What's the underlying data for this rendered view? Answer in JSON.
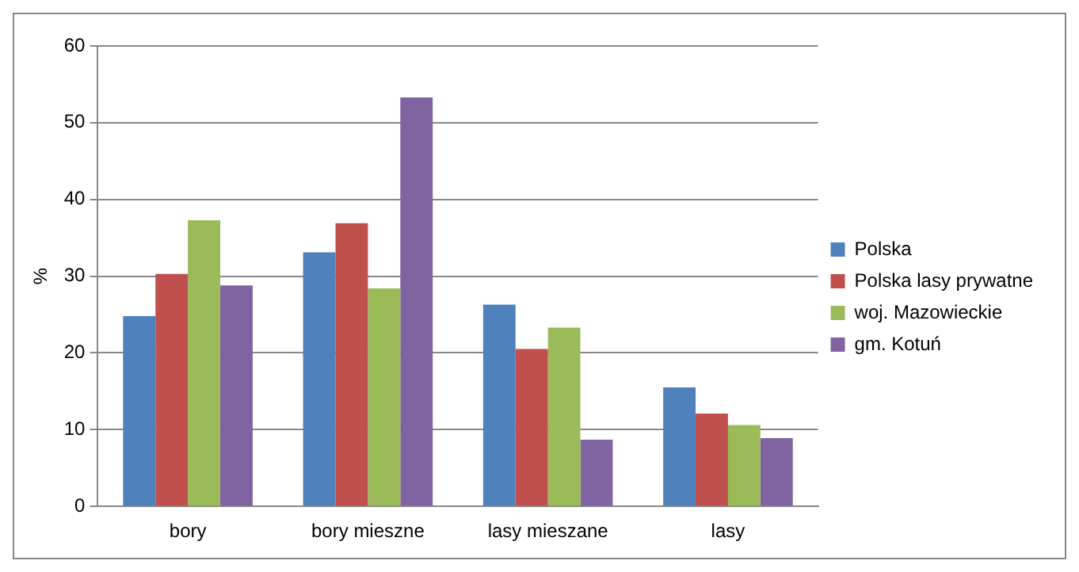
{
  "chart_data": {
    "type": "bar",
    "ylabel": "%",
    "categories": [
      "bory",
      "bory mieszne",
      "lasy mieszane",
      "lasy"
    ],
    "series": [
      {
        "name": "Polska",
        "color": "#4f81bd",
        "values": [
          24.8,
          33.1,
          26.3,
          15.5
        ]
      },
      {
        "name": "Polska lasy prywatne",
        "color": "#c0504d",
        "values": [
          30.3,
          36.9,
          20.5,
          12.1
        ]
      },
      {
        "name": "woj. Mazowieckie",
        "color": "#9bbb59",
        "values": [
          37.3,
          28.4,
          23.3,
          10.6
        ]
      },
      {
        "name": "gm. Kotuń",
        "color": "#8064a2",
        "values": [
          28.8,
          53.3,
          8.7,
          8.9
        ]
      }
    ],
    "ylim": [
      0,
      60
    ],
    "yticks": [
      0,
      10,
      20,
      30,
      40,
      50,
      60
    ],
    "grid": "y",
    "legend": "right"
  }
}
